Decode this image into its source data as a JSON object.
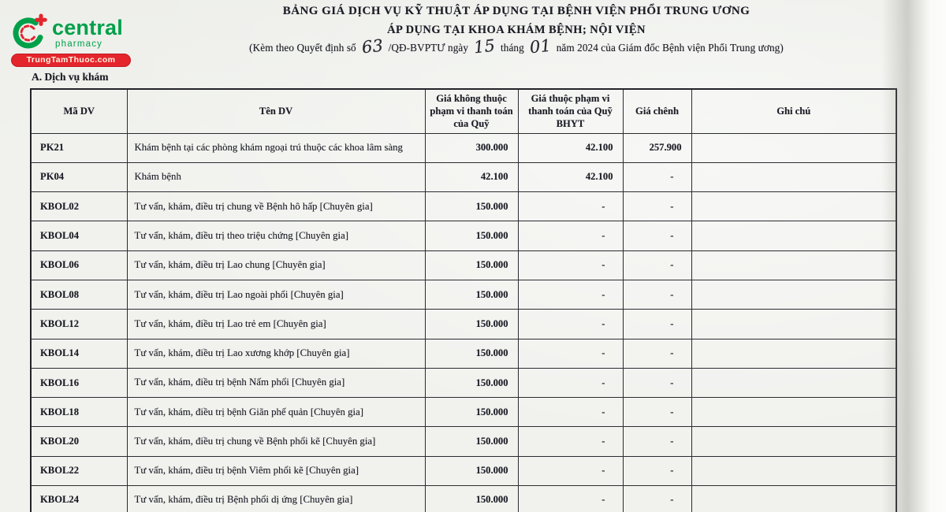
{
  "logo": {
    "brand": "central",
    "sub": "pharmacy",
    "site": "TrungTamThuoc.com",
    "brand_green": "#00A04A",
    "brand_red": "#E4252C"
  },
  "header": {
    "title_line1": "BẢNG GIÁ DỊCH VỤ KỸ THUẬT ÁP DỤNG TẠI BỆNH VIỆN PHỔI TRUNG ƯƠNG",
    "title_line2": "ÁP DỤNG TẠI KHOA KHÁM BỆNH; NỘI VIỆN",
    "subtitle_pre": "(Kèm theo Quyết định số",
    "decision_no": "63",
    "subtitle_mid1": "/QĐ-BVPTƯ ngày",
    "day": "15",
    "subtitle_mid2": "tháng",
    "month": "01",
    "subtitle_post": "năm 2024 của Giám đốc Bệnh viện Phổi Trung ương)"
  },
  "section_title": "A. Dịch vụ khám",
  "table": {
    "columns": [
      "Mã DV",
      "Tên DV",
      "Giá không thuộc phạm vi thanh toán của Quỹ",
      "Giá thuộc phạm vi thanh toán của Quỹ BHYT",
      "Giá chênh",
      "Ghi chú"
    ],
    "rows": [
      {
        "code": "PK21",
        "name": "Khám bệnh tại các phòng khám ngoại trú thuộc các khoa lâm sàng",
        "price_not_covered": "300.000",
        "price_covered": "42.100",
        "price_diff": "257.900",
        "note": ""
      },
      {
        "code": "PK04",
        "name": "Khám bệnh",
        "price_not_covered": "42.100",
        "price_covered": "42.100",
        "price_diff": "-",
        "note": ""
      },
      {
        "code": "KBOL02",
        "name": "Tư vấn, khám, điều trị chung về Bệnh hô hấp [Chuyên gia]",
        "price_not_covered": "150.000",
        "price_covered": "-",
        "price_diff": "-",
        "note": ""
      },
      {
        "code": "KBOL04",
        "name": "Tư vấn, khám, điều trị theo triệu chứng [Chuyên gia]",
        "price_not_covered": "150.000",
        "price_covered": "-",
        "price_diff": "-",
        "note": ""
      },
      {
        "code": "KBOL06",
        "name": "Tư vấn, khám, điều trị Lao chung [Chuyên gia]",
        "price_not_covered": "150.000",
        "price_covered": "-",
        "price_diff": "-",
        "note": ""
      },
      {
        "code": "KBOL08",
        "name": "Tư vấn, khám, điều trị Lao ngoài phổi [Chuyên gia]",
        "price_not_covered": "150.000",
        "price_covered": "-",
        "price_diff": "-",
        "note": ""
      },
      {
        "code": "KBOL12",
        "name": "Tư vấn, khám, điều trị Lao trẻ em [Chuyên gia]",
        "price_not_covered": "150.000",
        "price_covered": "-",
        "price_diff": "-",
        "note": ""
      },
      {
        "code": "KBOL14",
        "name": "Tư vấn, khám, điều trị Lao xương khớp [Chuyên gia]",
        "price_not_covered": "150.000",
        "price_covered": "-",
        "price_diff": "-",
        "note": ""
      },
      {
        "code": "KBOL16",
        "name": "Tư vấn, khám, điều trị bệnh Nấm phổi [Chuyên gia]",
        "price_not_covered": "150.000",
        "price_covered": "-",
        "price_diff": "-",
        "note": ""
      },
      {
        "code": "KBOL18",
        "name": "Tư vấn, khám, điều trị bệnh Giãn phế quản [Chuyên gia]",
        "price_not_covered": "150.000",
        "price_covered": "-",
        "price_diff": "-",
        "note": ""
      },
      {
        "code": "KBOL20",
        "name": "Tư vấn, khám, điều trị chung về Bệnh phổi kẽ [Chuyên gia]",
        "price_not_covered": "150.000",
        "price_covered": "-",
        "price_diff": "-",
        "note": ""
      },
      {
        "code": "KBOL22",
        "name": "Tư vấn, khám, điều trị bệnh Viêm phổi kẽ [Chuyên gia]",
        "price_not_covered": "150.000",
        "price_covered": "-",
        "price_diff": "-",
        "note": ""
      },
      {
        "code": "KBOL24",
        "name": "Tư vấn, khám, điều trị Bệnh phổi dị ứng [Chuyên gia]",
        "price_not_covered": "150.000",
        "price_covered": "-",
        "price_diff": "-",
        "note": ""
      }
    ]
  }
}
